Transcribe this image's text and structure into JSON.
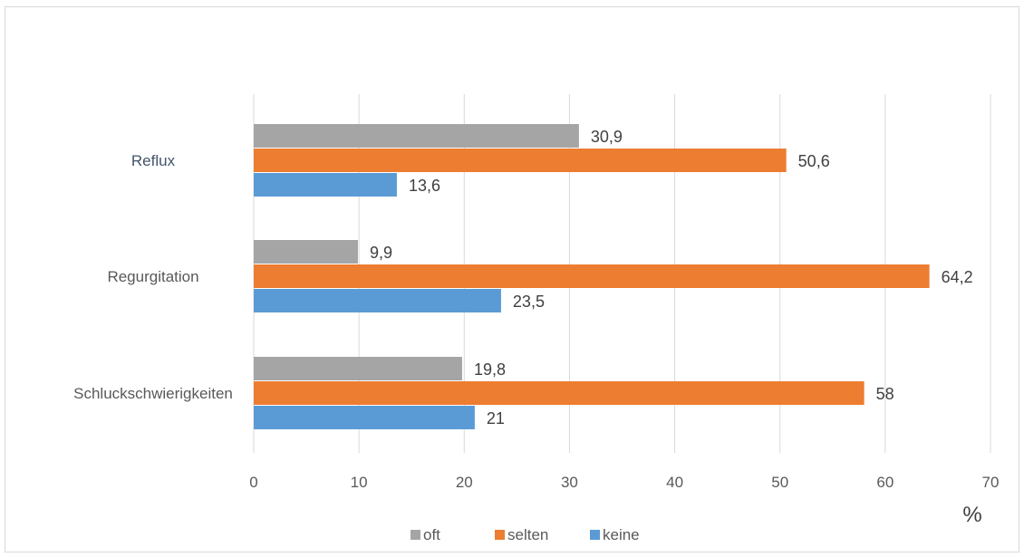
{
  "chart_data": {
    "type": "bar",
    "orientation": "horizontal",
    "categories": [
      "Reflux",
      "Regurgitation",
      "Schluckschwierigkeiten"
    ],
    "series": [
      {
        "name": "oft",
        "values": [
          30.9,
          9.9,
          19.8
        ],
        "labels": [
          "30,9",
          "9,9",
          "19,8"
        ],
        "color": "#a5a5a5"
      },
      {
        "name": "selten",
        "values": [
          50.6,
          64.2,
          58
        ],
        "labels": [
          "50,6",
          "64,2",
          "58"
        ],
        "color": "#ed7d31"
      },
      {
        "name": "keine",
        "values": [
          13.6,
          23.5,
          21
        ],
        "labels": [
          "13,6",
          "23,5",
          "21"
        ],
        "color": "#5b9bd5"
      }
    ],
    "xlim": [
      0,
      70
    ],
    "xticks": [
      0,
      10,
      20,
      30,
      40,
      50,
      60,
      70
    ],
    "x_unit": "%",
    "grid": true,
    "legend_position": "bottom",
    "category_label_colors": [
      "#44546a",
      "#595959",
      "#595959"
    ]
  }
}
